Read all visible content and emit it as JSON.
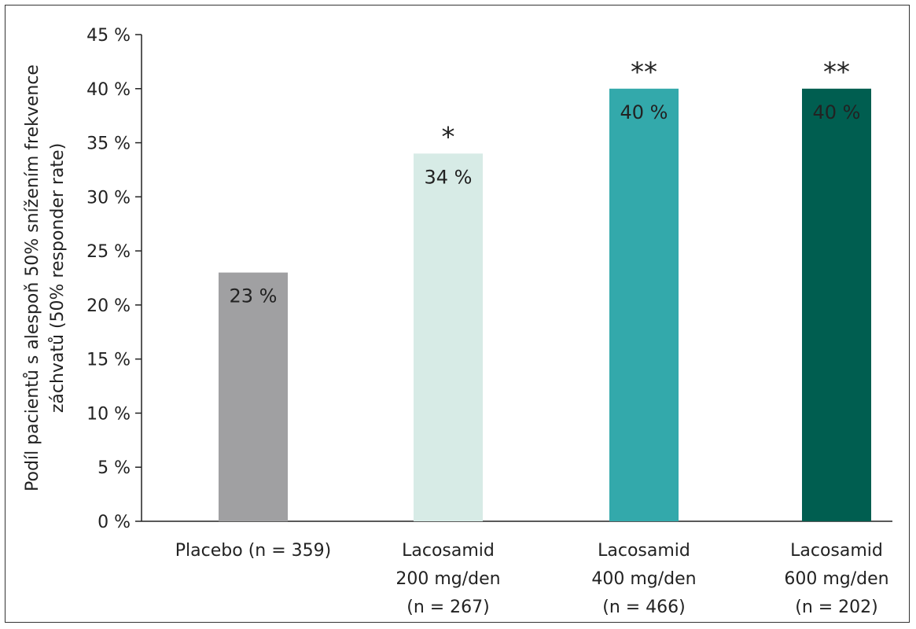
{
  "chart_data": {
    "type": "bar",
    "categories": [
      [
        "Placebo (n = 359)"
      ],
      [
        "Lacosamid",
        "200 mg/den",
        "(n = 267)"
      ],
      [
        "Lacosamid",
        "400 mg/den",
        "(n = 466)"
      ],
      [
        "Lacosamid",
        "600 mg/den",
        "(n = 202)"
      ]
    ],
    "values": [
      23,
      34,
      40,
      40
    ],
    "value_labels": [
      "23 %",
      "34 %",
      "40 %",
      "40 %"
    ],
    "significance": [
      "",
      "*",
      "**",
      "**"
    ],
    "colors": [
      "#a0a0a2",
      "#d7ebe6",
      "#33a9ab",
      "#005e50"
    ],
    "ylabel": [
      "Podíl pacientů s alespoň 50% snížením frekvence",
      "záchvatů (50% responder rate)"
    ],
    "ylim": [
      0,
      45
    ],
    "yticks": [
      0,
      5,
      10,
      15,
      20,
      25,
      30,
      35,
      40,
      45
    ],
    "ytick_labels": [
      "0 %",
      "5 %",
      "10 %",
      "15 %",
      "20 %",
      "25 %",
      "30 %",
      "35 %",
      "40 %",
      "45 %"
    ],
    "grid": false,
    "legend": "none"
  }
}
